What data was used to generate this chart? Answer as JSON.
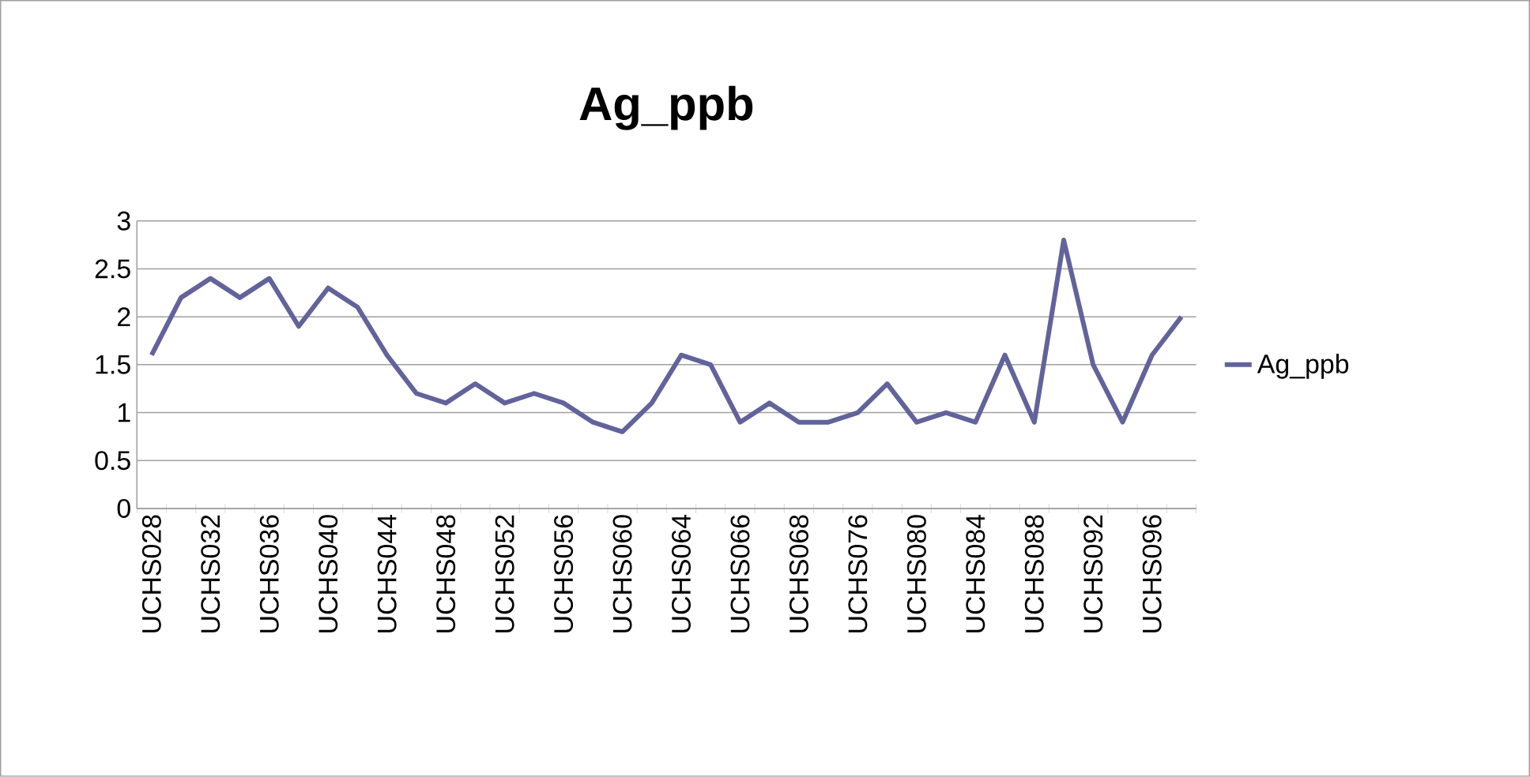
{
  "chart_data": {
    "type": "line",
    "title": "Ag_ppb",
    "categories": [
      "UCHS028",
      null,
      "UCHS032",
      null,
      "UCHS036",
      null,
      "UCHS040",
      null,
      "UCHS044",
      null,
      "UCHS048",
      null,
      "UCHS052",
      null,
      "UCHS056",
      null,
      "UCHS060",
      null,
      "UCHS064",
      null,
      "UCHS066",
      null,
      "UCHS068",
      null,
      "UCHS076",
      null,
      "UCHS080",
      null,
      "UCHS084",
      null,
      "UCHS088",
      null,
      "UCHS092",
      null,
      "UCHS096",
      null
    ],
    "series": [
      {
        "name": "Ag_ppb",
        "color": "#62639b",
        "values": [
          1.6,
          2.2,
          2.4,
          2.2,
          2.4,
          1.9,
          2.3,
          2.1,
          1.6,
          1.2,
          1.1,
          1.3,
          1.1,
          1.2,
          1.1,
          0.9,
          0.8,
          1.1,
          1.6,
          1.5,
          0.9,
          1.1,
          0.9,
          0.9,
          1.0,
          1.3,
          0.9,
          1.0,
          0.9,
          1.6,
          0.9,
          2.8,
          1.5,
          0.9,
          1.6,
          2.0
        ]
      }
    ],
    "ylim": [
      0,
      3
    ],
    "yticks": [
      0,
      0.5,
      1,
      1.5,
      2,
      2.5,
      3
    ],
    "grid": "y",
    "legend": "right",
    "marker": "none",
    "line_style": "solid"
  }
}
